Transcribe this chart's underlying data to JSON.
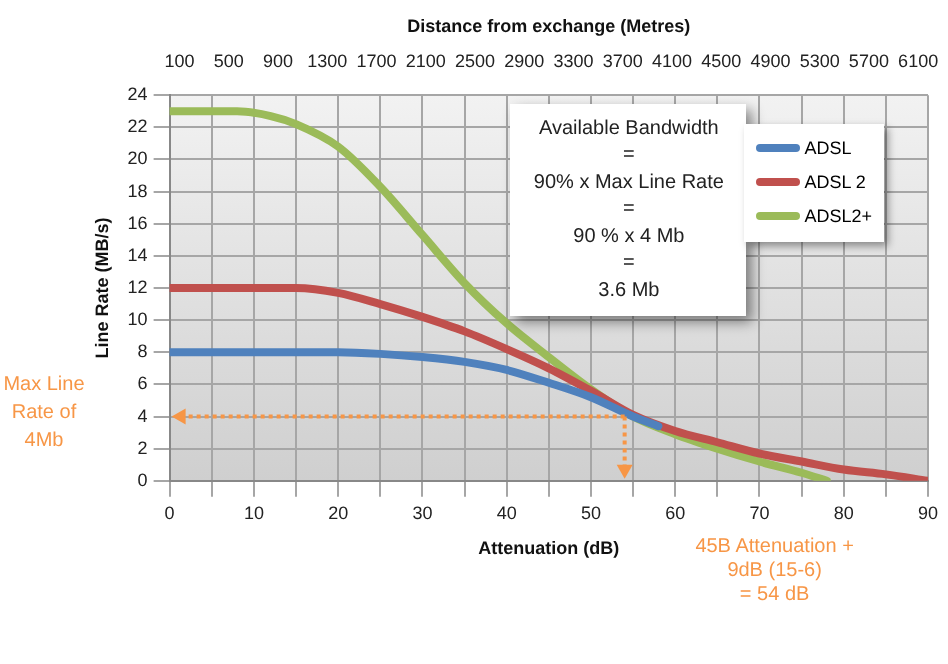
{
  "chart_data": {
    "type": "line",
    "xlabel": "Attenuation (dB)",
    "ylabel": "Line Rate (MB/s)",
    "x2label": "Distance from exchange (Metres)",
    "xlim": [
      0,
      90
    ],
    "xticks": [
      0,
      {
        "value": 5,
        "label": null
      },
      10,
      {
        "value": 15,
        "label": null
      },
      20,
      {
        "value": 25,
        "label": null
      },
      30,
      {
        "value": 35,
        "label": null
      },
      40,
      {
        "value": 45,
        "label": null
      },
      50,
      {
        "value": 55,
        "label": null
      },
      60,
      {
        "value": 65,
        "label": null
      },
      70,
      {
        "value": 75,
        "label": null
      },
      80,
      {
        "value": 85,
        "label": null
      },
      90
    ],
    "ylim": [
      0,
      24
    ],
    "yticks": [
      0,
      2,
      4,
      6,
      8,
      10,
      12,
      14,
      16,
      18,
      20,
      22,
      24
    ],
    "x2lim": [
      20,
      6180
    ],
    "x2ticks": [
      100,
      500,
      900,
      1300,
      1700,
      2100,
      2500,
      2900,
      3300,
      3700,
      4100,
      4500,
      4900,
      5300,
      5700,
      6100
    ],
    "grid": true,
    "legend": "top right",
    "marker": "none",
    "series": [
      {
        "name": "ADSL",
        "color": "#4f81bd",
        "x": [
          0,
          10,
          20,
          25,
          30,
          35,
          40,
          45,
          50,
          55,
          58
        ],
        "values": [
          8,
          8,
          8,
          7.9,
          7.7,
          7.4,
          6.9,
          6.1,
          5.2,
          4,
          3.4
        ]
      },
      {
        "name": "ADSL 2",
        "color": "#c0504d",
        "x": [
          0,
          10,
          15,
          20,
          25,
          30,
          35,
          40,
          45,
          50,
          55,
          60,
          65,
          70,
          75,
          80,
          85,
          90
        ],
        "values": [
          12,
          12,
          12,
          11.7,
          11,
          10.2,
          9.3,
          8.2,
          7,
          5.6,
          4.1,
          3.1,
          2.4,
          1.7,
          1.2,
          0.7,
          0.4,
          0
        ]
      },
      {
        "name": "ADSL2+",
        "color": "#9bbb59",
        "x": [
          0,
          8,
          12,
          15,
          20,
          25,
          30,
          35,
          40,
          45,
          50,
          55,
          60,
          65,
          70,
          75,
          78
        ],
        "values": [
          23,
          23,
          22.7,
          22.2,
          20.8,
          18.3,
          15.3,
          12.3,
          9.8,
          7.7,
          5.7,
          4,
          2.9,
          2,
          1.2,
          0.5,
          0
        ]
      }
    ],
    "annotations": [
      "Available Bandwidth\n=\n90% x Max Line Rate\n=\n90 % x 4 Mb\n=\n3.6 Mb",
      "Max Line Rate of 4Mb",
      "45B  Attenuation +\n9dB  (15-6)\n= 54 dB"
    ]
  }
}
